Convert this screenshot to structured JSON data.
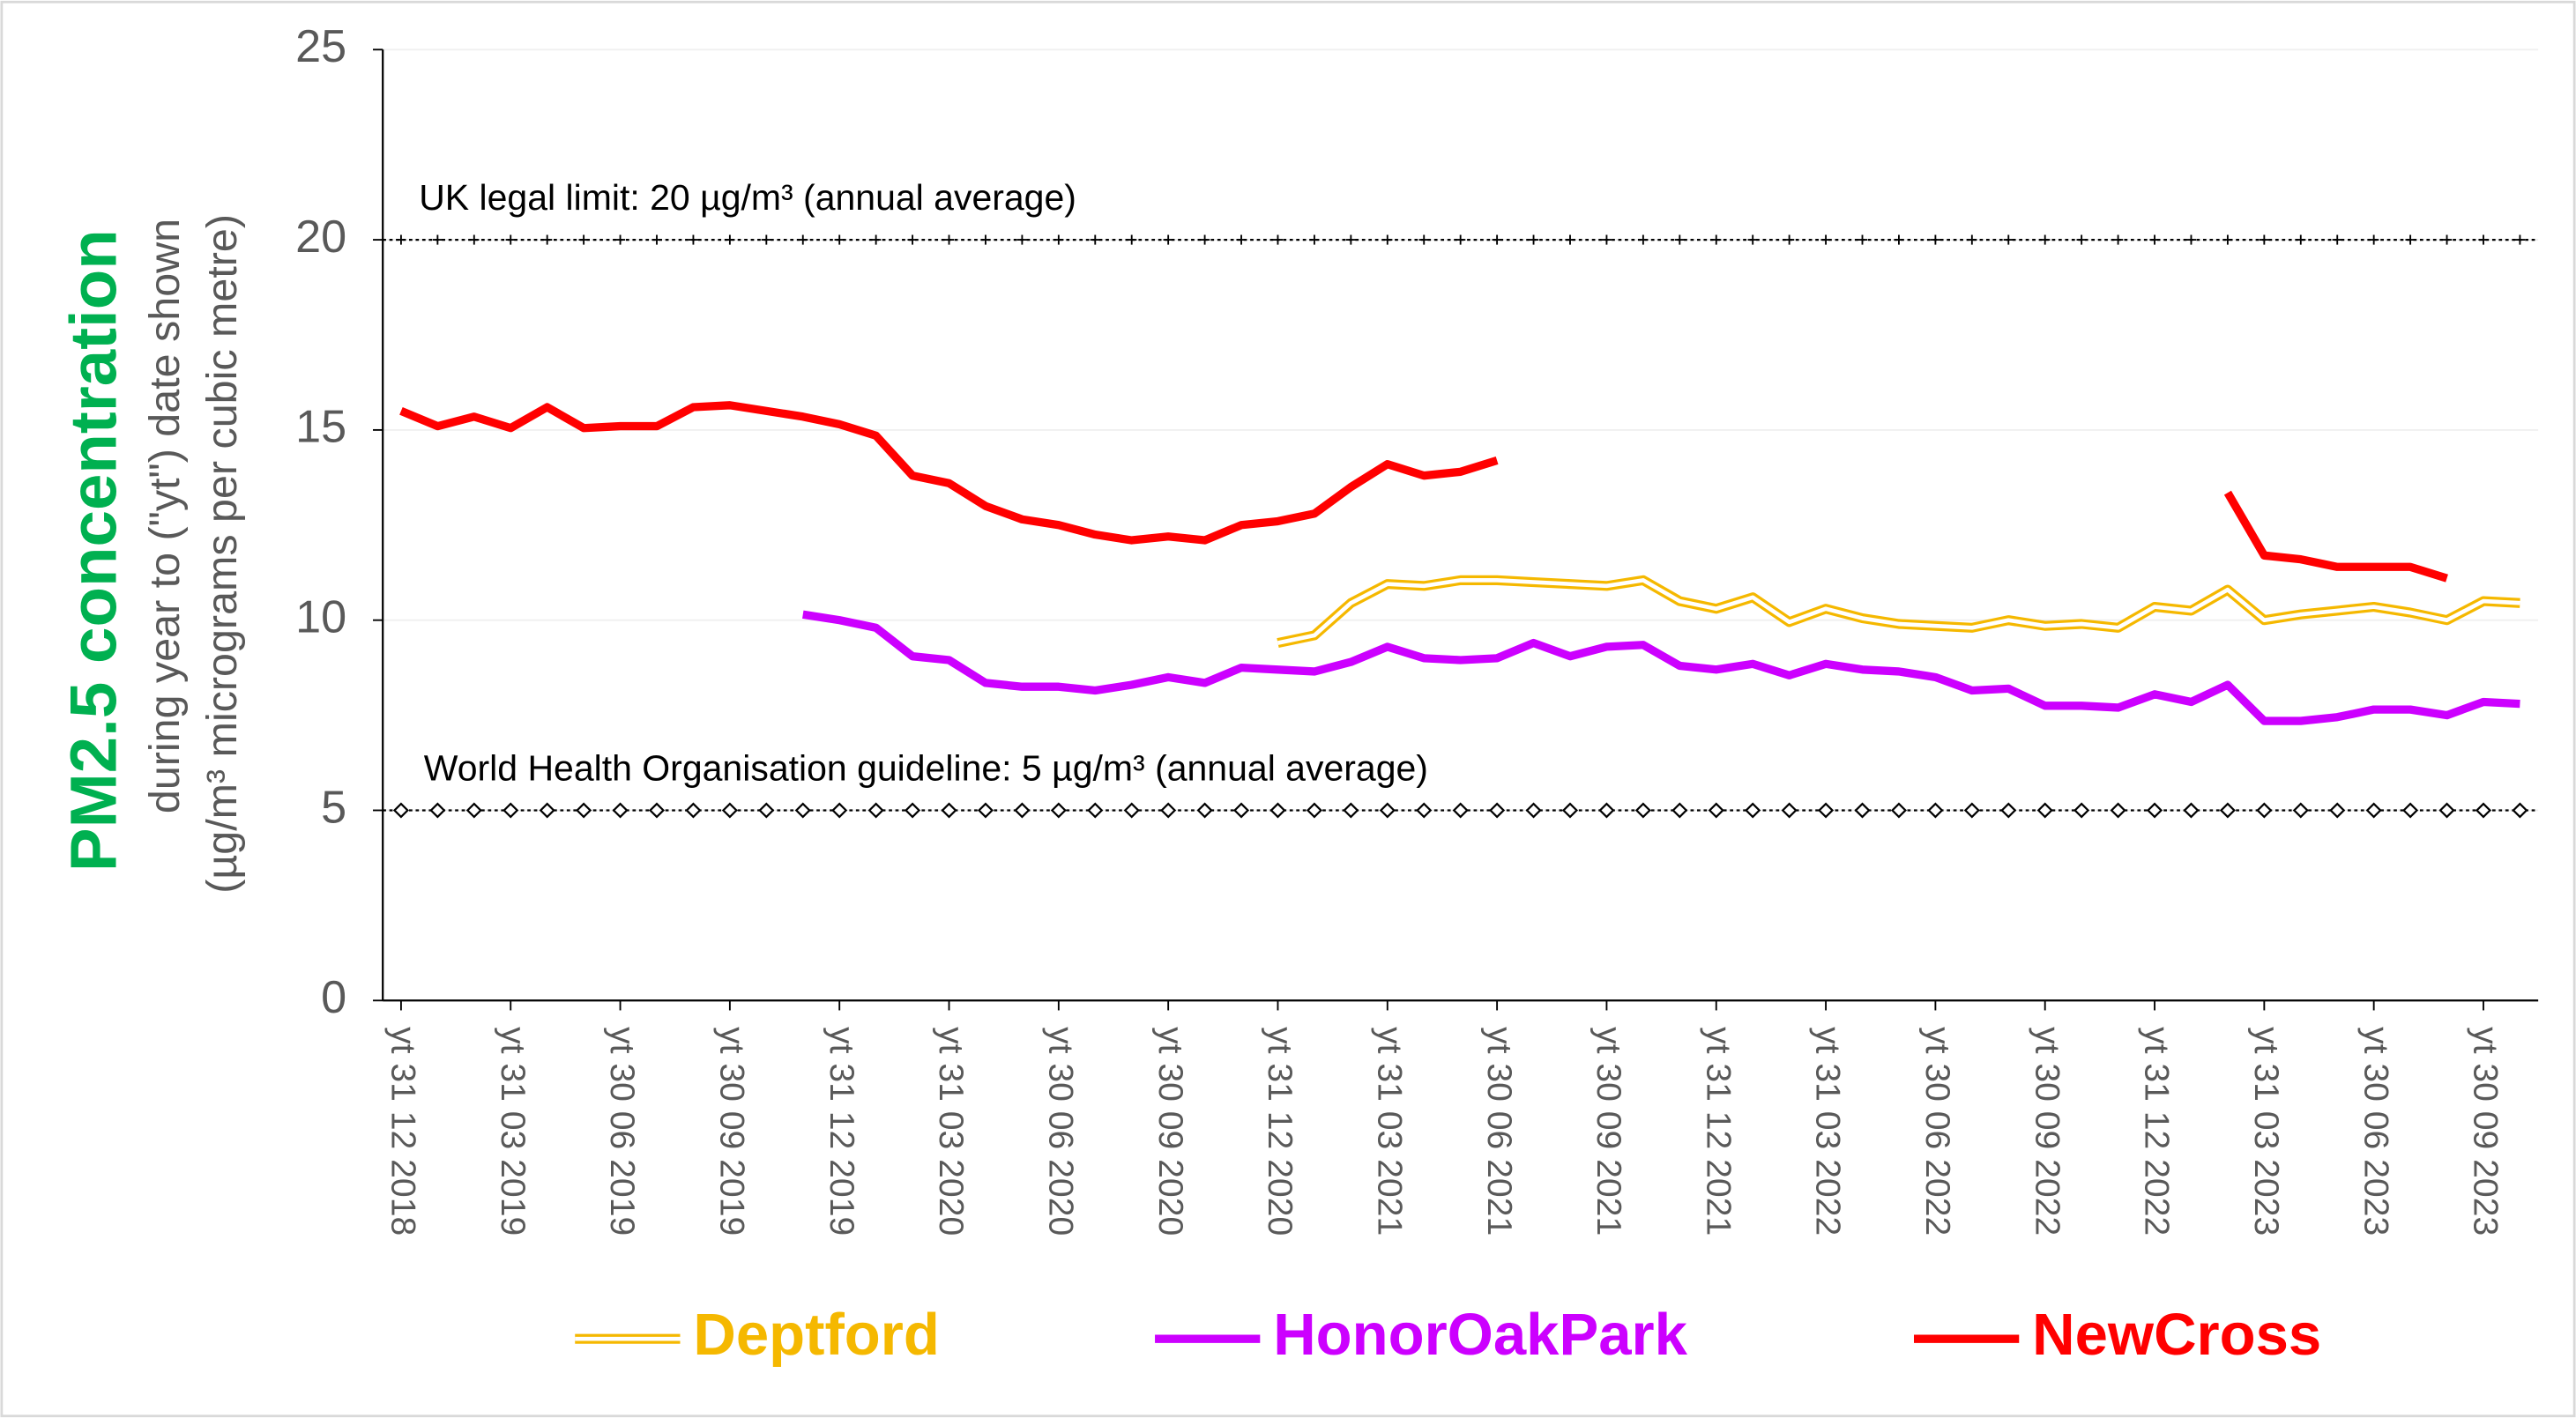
{
  "chart_data": {
    "type": "line",
    "y_label": [
      "PM2.5 concentration",
      "during year to (\"yt\") date shown",
      "(µg/m³ micrograms per cubic metre)"
    ],
    "categories": [
      "yt 31 12 2018",
      null,
      null,
      "yt 31 03 2019",
      null,
      null,
      "yt 30 06 2019",
      null,
      null,
      "yt 30 09 2019",
      null,
      null,
      "yt 31 12 2019",
      null,
      null,
      "yt 31 03 2020",
      null,
      null,
      "yt 30 06 2020",
      null,
      null,
      "yt 30 09 2020",
      null,
      null,
      "yt 31 12 2020",
      null,
      null,
      "yt 31 03 2021",
      null,
      null,
      "yt 30 06 2021",
      null,
      null,
      "yt 30 09 2021",
      null,
      null,
      "yt 31 12 2021",
      null,
      null,
      "yt 31 03 2022",
      null,
      null,
      "yt 30 06 2022",
      null,
      null,
      "yt 30 09 2022",
      null,
      null,
      "yt 31 12 2022",
      null,
      null,
      "yt 31 03 2023",
      null,
      null,
      "yt 30 06 2023",
      null,
      null,
      "yt 30 09 2023",
      null
    ],
    "ylim": [
      0,
      25
    ],
    "yticks": [
      0,
      5,
      10,
      15,
      20,
      25
    ],
    "grid": true,
    "series": [
      {
        "name": "Deptford",
        "color": "#f5b800",
        "style": "double",
        "values": [
          null,
          null,
          null,
          null,
          null,
          null,
          null,
          null,
          null,
          null,
          null,
          null,
          null,
          null,
          null,
          null,
          null,
          null,
          null,
          null,
          null,
          null,
          null,
          null,
          9.4,
          9.6,
          10.45,
          10.95,
          10.9,
          11.05,
          11.05,
          11.0,
          10.95,
          10.9,
          11.05,
          10.5,
          10.3,
          10.6,
          9.95,
          10.3,
          10.05,
          9.9,
          9.85,
          9.8,
          10.0,
          9.85,
          9.9,
          9.8,
          10.35,
          10.25,
          10.8,
          10.0,
          10.15,
          10.25,
          10.35,
          10.2,
          10.0,
          10.5,
          10.45
        ]
      },
      {
        "name": "HonorOakPark",
        "color": "#cc00ff",
        "style": "solid",
        "values": [
          null,
          null,
          null,
          null,
          null,
          null,
          null,
          null,
          null,
          null,
          null,
          10.15,
          10.0,
          9.8,
          9.05,
          8.95,
          8.35,
          8.25,
          8.25,
          8.15,
          8.3,
          8.5,
          8.35,
          8.75,
          8.7,
          8.65,
          8.9,
          9.3,
          9.0,
          8.95,
          9.0,
          9.4,
          9.05,
          9.3,
          9.35,
          8.8,
          8.7,
          8.85,
          8.55,
          8.85,
          8.7,
          8.65,
          8.5,
          8.15,
          8.2,
          7.75,
          7.75,
          7.7,
          8.05,
          7.85,
          8.3,
          7.35,
          7.35,
          7.45,
          7.65,
          7.65,
          7.5,
          7.85,
          7.8
        ]
      },
      {
        "name": "NewCross",
        "color": "#ff0000",
        "style": "solid",
        "values": [
          15.5,
          15.1,
          15.35,
          15.05,
          15.6,
          15.05,
          15.1,
          15.1,
          15.6,
          15.65,
          15.5,
          15.35,
          15.15,
          14.85,
          13.8,
          13.6,
          13.0,
          12.65,
          12.5,
          12.25,
          12.1,
          12.2,
          12.1,
          12.5,
          12.6,
          12.8,
          13.5,
          14.1,
          13.8,
          13.9,
          14.2,
          null,
          null,
          null,
          null,
          null,
          null,
          null,
          null,
          null,
          null,
          null,
          null,
          null,
          null,
          null,
          null,
          null,
          null,
          null,
          13.35,
          11.7,
          11.6,
          11.4,
          11.4,
          11.4,
          11.1,
          null,
          null
        ]
      }
    ],
    "reference_lines": [
      {
        "value": 20,
        "label": "UK legal limit: 20 µg/m³ (annual average)",
        "marker": "plus"
      },
      {
        "value": 5,
        "label": "World Health Organisation guideline: 5 µg/m³ (annual average)",
        "marker": "diamond"
      }
    ]
  }
}
